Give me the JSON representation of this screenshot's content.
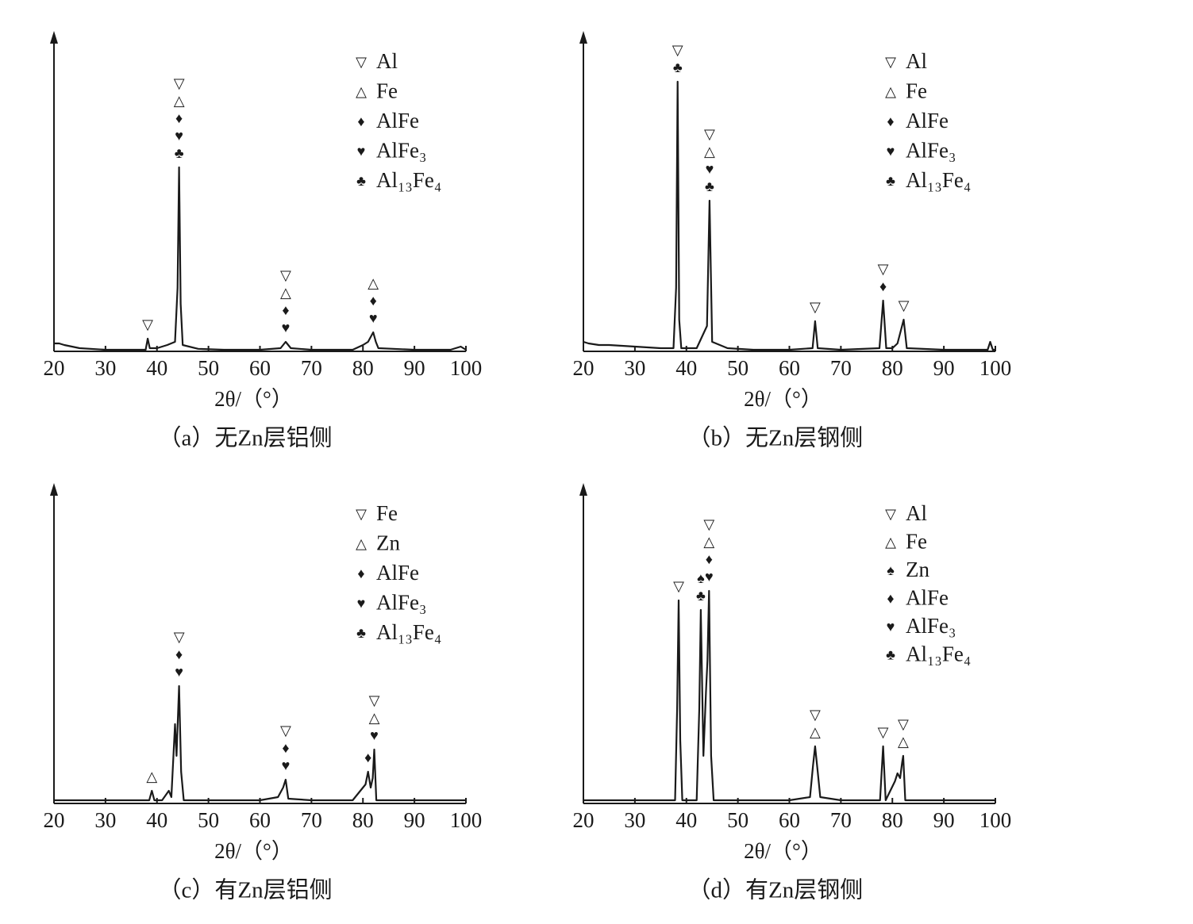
{
  "chart_data": [
    {
      "type": "line",
      "caption": "（a）无Zn层铝侧",
      "xlabel": "2θ/（°）",
      "xlim": [
        20,
        100
      ],
      "ylim": [
        0,
        100
      ],
      "xticks": [
        20,
        30,
        40,
        50,
        60,
        70,
        80,
        90,
        100
      ],
      "x": [
        20,
        21,
        22,
        25,
        30,
        35,
        37.8,
        38.2,
        38.6,
        40,
        42,
        43.5,
        44,
        44.3,
        44.6,
        45,
        48,
        53,
        60,
        64,
        65,
        66,
        70,
        78,
        80,
        81,
        82,
        82.5,
        83,
        90,
        97,
        99,
        100
      ],
      "series": [
        {
          "color": "#1a1a1a",
          "values": [
            2.5,
            2.5,
            2,
            1,
            0.5,
            0.5,
            0.5,
            4,
            1,
            1,
            2,
            3,
            20,
            58,
            15,
            2,
            0.8,
            0.5,
            0.5,
            1,
            3,
            1,
            0.5,
            0.5,
            2,
            3,
            6,
            3,
            1,
            0.5,
            0.5,
            1.5,
            0.5
          ]
        }
      ],
      "legend": [
        {
          "symbol": "▽",
          "name": "Al"
        },
        {
          "symbol": "△",
          "name": "Fe"
        },
        {
          "symbol": "♦",
          "name": "AlFe"
        },
        {
          "symbol": "♥",
          "name": "AlFe₃"
        },
        {
          "symbol": "♣",
          "name": "Al₁₃Fe₄"
        }
      ],
      "annotations": [
        {
          "x": 38.2,
          "symbols": [
            "▽"
          ]
        },
        {
          "x": 44.3,
          "symbols": [
            "▽",
            "△",
            "♦",
            "♥",
            "♣"
          ]
        },
        {
          "x": 65,
          "symbols": [
            "▽",
            "△",
            "♦",
            "♥"
          ]
        },
        {
          "x": 82,
          "symbols": [
            "△",
            "♦",
            "♥"
          ]
        }
      ]
    },
    {
      "type": "line",
      "caption": "（b）无Zn层钢侧",
      "xlabel": "2θ/（°）",
      "xlim": [
        20,
        100
      ],
      "ylim": [
        0,
        100
      ],
      "xticks": [
        20,
        30,
        40,
        50,
        60,
        70,
        80,
        90,
        100
      ],
      "x": [
        20,
        21,
        23,
        25,
        30,
        35,
        37.5,
        38,
        38.3,
        38.6,
        39,
        42,
        44,
        44.5,
        45,
        48,
        53,
        60,
        64.5,
        65,
        65.5,
        70,
        77.5,
        78.2,
        78.8,
        80,
        81,
        82.2,
        82.8,
        90,
        98.5,
        99,
        99.5,
        100
      ],
      "series": [
        {
          "color": "#1a1a1a",
          "values": [
            3,
            2.5,
            2,
            2,
            1.5,
            1,
            1,
            20,
            85,
            10,
            1,
            1,
            8,
            47.5,
            3,
            1,
            0.5,
            0.5,
            1,
            9.5,
            1,
            0.5,
            1,
            16,
            1,
            1,
            2.5,
            10,
            1,
            0.5,
            0.5,
            3,
            0.5,
            0.5
          ]
        }
      ],
      "legend": [
        {
          "symbol": "▽",
          "name": "Al"
        },
        {
          "symbol": "△",
          "name": "Fe"
        },
        {
          "symbol": "♦",
          "name": "AlFe"
        },
        {
          "symbol": "♥",
          "name": "AlFe₃"
        },
        {
          "symbol": "♣",
          "name": "Al₁₃Fe₄"
        }
      ],
      "annotations": [
        {
          "x": 38.3,
          "symbols": [
            "▽",
            "♣"
          ]
        },
        {
          "x": 44.5,
          "symbols": [
            "▽",
            "△",
            "♥",
            "♣"
          ]
        },
        {
          "x": 65,
          "symbols": [
            "▽"
          ]
        },
        {
          "x": 78.2,
          "symbols": [
            "▽",
            "♦"
          ]
        },
        {
          "x": 82.2,
          "symbols": [
            "▽"
          ]
        }
      ]
    },
    {
      "type": "line",
      "caption": "（c）有Zn层铝侧",
      "xlabel": "2θ/（°）",
      "xlim": [
        20,
        100
      ],
      "ylim": [
        0,
        100
      ],
      "xticks": [
        20,
        30,
        40,
        50,
        60,
        70,
        80,
        90,
        100
      ],
      "x": [
        20,
        25,
        30,
        35,
        38.5,
        39,
        39.5,
        41,
        42.3,
        42.8,
        43.5,
        43.8,
        44.3,
        44.7,
        45.2,
        48,
        53,
        60,
        63.5,
        64.5,
        65,
        65.5,
        70,
        78,
        80.5,
        81,
        81.5,
        81.9,
        82.2,
        82.6,
        90,
        100
      ],
      "series": [
        {
          "color": "#1a1a1a",
          "values": [
            1,
            1,
            1,
            1,
            1,
            4,
            1,
            1,
            4,
            2,
            25,
            15,
            37,
            10,
            1,
            1,
            1,
            1,
            2,
            5,
            7.5,
            1.5,
            1,
            1,
            6,
            10,
            5,
            8,
            17,
            1,
            1,
            1
          ]
        }
      ],
      "legend": [
        {
          "symbol": "▽",
          "name": "Fe"
        },
        {
          "symbol": "△",
          "name": "Zn"
        },
        {
          "symbol": "♦",
          "name": "AlFe"
        },
        {
          "symbol": "♥",
          "name": "AlFe₃"
        },
        {
          "symbol": "♣",
          "name": "Al₁₃Fe₄"
        }
      ],
      "annotations": [
        {
          "x": 39,
          "symbols": [
            "△"
          ]
        },
        {
          "x": 44.3,
          "symbols": [
            "▽",
            "♦",
            "♥"
          ]
        },
        {
          "x": 65,
          "symbols": [
            "▽",
            "♦",
            "♥"
          ]
        },
        {
          "x": 81,
          "symbols": [
            "♦"
          ]
        },
        {
          "x": 82.2,
          "symbols": [
            "▽",
            "△",
            "♥"
          ]
        }
      ]
    },
    {
      "type": "line",
      "caption": "（d）有Zn层钢侧",
      "xlabel": "2θ/（°）",
      "xlim": [
        20,
        100
      ],
      "ylim": [
        0,
        100
      ],
      "xticks": [
        20,
        30,
        40,
        50,
        60,
        70,
        80,
        90,
        100
      ],
      "x": [
        20,
        25,
        30,
        35,
        37.8,
        38.2,
        38.5,
        38.8,
        39.2,
        42,
        42.5,
        42.8,
        43.3,
        43.8,
        44.1,
        44.4,
        44.8,
        45.3,
        50,
        60,
        64,
        64.6,
        65,
        65.5,
        66,
        70,
        77.6,
        78.2,
        78.7,
        80.5,
        81,
        81.5,
        81.9,
        82.1,
        82.5,
        90,
        100
      ],
      "series": [
        {
          "color": "#1a1a1a",
          "values": [
            1,
            1,
            1,
            1,
            1,
            30,
            64,
            20,
            1,
            1,
            30,
            61,
            15,
            35,
            45,
            67,
            15,
            1,
            1,
            1,
            2,
            12,
            18,
            10,
            2,
            1,
            1,
            18,
            1,
            7,
            9.5,
            8,
            13,
            15,
            1,
            1,
            1
          ]
        }
      ],
      "legend": [
        {
          "symbol": "▽",
          "name": "Al"
        },
        {
          "symbol": "△",
          "name": "Fe"
        },
        {
          "symbol": "♠",
          "name": "Zn"
        },
        {
          "symbol": "♦",
          "name": "AlFe"
        },
        {
          "symbol": "♥",
          "name": "AlFe₃"
        },
        {
          "symbol": "♣",
          "name": "Al₁₃Fe₄"
        }
      ],
      "annotations": [
        {
          "x": 38.5,
          "symbols": [
            "▽"
          ]
        },
        {
          "x": 42.8,
          "symbols": [
            "♠",
            "♣"
          ]
        },
        {
          "x": 44.4,
          "symbols": [
            "▽",
            "△",
            "♦",
            "♥"
          ]
        },
        {
          "x": 65,
          "symbols": [
            "▽",
            "△"
          ]
        },
        {
          "x": 78.2,
          "symbols": [
            "▽"
          ]
        },
        {
          "x": 82.1,
          "symbols": [
            "▽",
            "△"
          ]
        }
      ]
    }
  ]
}
